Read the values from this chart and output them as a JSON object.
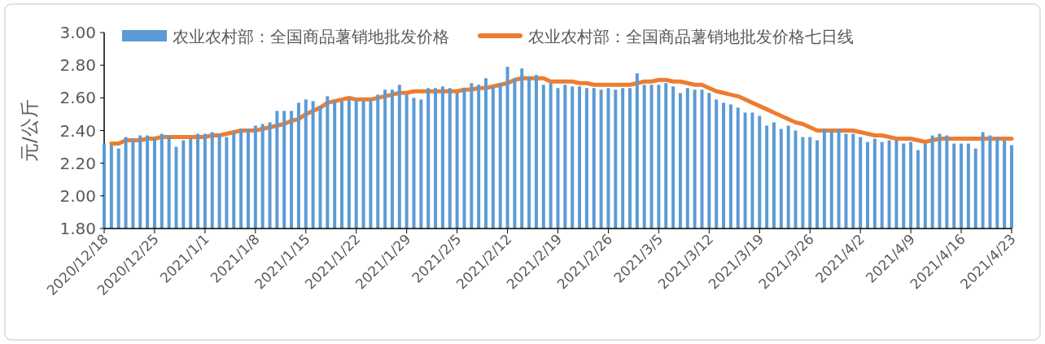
{
  "chart_data": {
    "type": "bar",
    "ylabel": "元/公斤",
    "x": [
      "2020-12-18",
      "2020-12-19",
      "2020-12-20",
      "2020-12-21",
      "2020-12-22",
      "2020-12-23",
      "2020-12-24",
      "2020-12-25",
      "2020-12-26",
      "2020-12-27",
      "2020-12-28",
      "2020-12-29",
      "2020-12-30",
      "2020-12-31",
      "2021-01-01",
      "2021-01-02",
      "2021-01-03",
      "2021-01-04",
      "2021-01-05",
      "2021-01-06",
      "2021-01-07",
      "2021-01-08",
      "2021-01-09",
      "2021-01-10",
      "2021-01-11",
      "2021-01-12",
      "2021-01-13",
      "2021-01-14",
      "2021-01-15",
      "2021-01-16",
      "2021-01-17",
      "2021-01-18",
      "2021-01-19",
      "2021-01-20",
      "2021-01-21",
      "2021-01-22",
      "2021-01-23",
      "2021-01-24",
      "2021-01-25",
      "2021-01-26",
      "2021-01-27",
      "2021-01-28",
      "2021-01-29",
      "2021-01-30",
      "2021-01-31",
      "2021-02-01",
      "2021-02-02",
      "2021-02-03",
      "2021-02-04",
      "2021-02-05",
      "2021-02-06",
      "2021-02-07",
      "2021-02-08",
      "2021-02-09",
      "2021-02-10",
      "2021-02-11",
      "2021-02-12",
      "2021-02-13",
      "2021-02-14",
      "2021-02-15",
      "2021-02-16",
      "2021-02-17",
      "2021-02-18",
      "2021-02-19",
      "2021-02-20",
      "2021-02-21",
      "2021-02-22",
      "2021-02-23",
      "2021-02-24",
      "2021-02-25",
      "2021-02-26",
      "2021-02-27",
      "2021-02-28",
      "2021-03-01",
      "2021-03-02",
      "2021-03-03",
      "2021-03-04",
      "2021-03-05",
      "2021-03-06",
      "2021-03-07",
      "2021-03-08",
      "2021-03-09",
      "2021-03-10",
      "2021-03-11",
      "2021-03-12",
      "2021-03-13",
      "2021-03-14",
      "2021-03-15",
      "2021-03-16",
      "2021-03-17",
      "2021-03-18",
      "2021-03-19",
      "2021-03-20",
      "2021-03-21",
      "2021-03-22",
      "2021-03-23",
      "2021-03-24",
      "2021-03-25",
      "2021-03-26",
      "2021-03-27",
      "2021-03-28",
      "2021-03-29",
      "2021-03-30",
      "2021-03-31",
      "2021-04-01",
      "2021-04-02",
      "2021-04-03",
      "2021-04-04",
      "2021-04-05",
      "2021-04-06",
      "2021-04-07",
      "2021-04-08",
      "2021-04-09",
      "2021-04-10",
      "2021-04-11",
      "2021-04-12",
      "2021-04-13",
      "2021-04-14",
      "2021-04-15",
      "2021-04-16",
      "2021-04-17",
      "2021-04-18",
      "2021-04-19",
      "2021-04-20",
      "2021-04-21",
      "2021-04-22",
      "2021-04-23"
    ],
    "series": [
      {
        "name": "农业农村部：全国商品薯销地批发价格",
        "color": "#5b9bd5",
        "values": [
          2.32,
          2.31,
          2.29,
          2.36,
          2.35,
          2.37,
          2.37,
          2.35,
          2.38,
          2.37,
          2.3,
          2.34,
          2.35,
          2.38,
          2.38,
          2.39,
          2.38,
          2.36,
          2.39,
          2.41,
          2.41,
          2.43,
          2.44,
          2.45,
          2.52,
          2.52,
          2.52,
          2.57,
          2.59,
          2.58,
          2.55,
          2.61,
          2.58,
          2.58,
          2.59,
          2.59,
          2.58,
          2.59,
          2.62,
          2.65,
          2.65,
          2.68,
          2.62,
          2.6,
          2.59,
          2.66,
          2.66,
          2.67,
          2.66,
          2.63,
          2.66,
          2.69,
          2.68,
          2.72,
          2.67,
          2.69,
          2.79,
          2.72,
          2.78,
          2.73,
          2.74,
          2.68,
          2.69,
          2.66,
          2.68,
          2.67,
          2.67,
          2.66,
          2.66,
          2.65,
          2.66,
          2.65,
          2.66,
          2.66,
          2.75,
          2.68,
          2.68,
          2.68,
          2.69,
          2.67,
          2.63,
          2.66,
          2.65,
          2.65,
          2.63,
          2.59,
          2.57,
          2.56,
          2.54,
          2.51,
          2.51,
          2.49,
          2.43,
          2.45,
          2.41,
          2.43,
          2.4,
          2.36,
          2.36,
          2.34,
          2.41,
          2.4,
          2.41,
          2.38,
          2.38,
          2.36,
          2.33,
          2.35,
          2.33,
          2.34,
          2.34,
          2.32,
          2.33,
          2.28,
          2.32,
          2.37,
          2.38,
          2.37,
          2.32,
          2.32,
          2.32,
          2.29,
          2.39,
          2.37,
          2.36,
          2.34,
          2.31
        ]
      },
      {
        "name": "农业农村部：全国商品薯销地批发价格七日线",
        "type": "line",
        "color": "#ed7d31",
        "values": [
          null,
          2.32,
          2.32,
          2.34,
          2.34,
          2.34,
          2.35,
          2.35,
          2.36,
          2.36,
          2.36,
          2.36,
          2.36,
          2.36,
          2.36,
          2.37,
          2.37,
          2.38,
          2.39,
          2.4,
          2.4,
          2.4,
          2.41,
          2.42,
          2.43,
          2.44,
          2.46,
          2.47,
          2.5,
          2.52,
          2.54,
          2.57,
          2.58,
          2.59,
          2.6,
          2.59,
          2.59,
          2.59,
          2.6,
          2.61,
          2.62,
          2.63,
          2.63,
          2.64,
          2.64,
          2.64,
          2.64,
          2.64,
          2.64,
          2.64,
          2.65,
          2.65,
          2.66,
          2.66,
          2.67,
          2.68,
          2.69,
          2.71,
          2.72,
          2.72,
          2.72,
          2.72,
          2.7,
          2.7,
          2.7,
          2.7,
          2.69,
          2.69,
          2.68,
          2.68,
          2.68,
          2.68,
          2.68,
          2.68,
          2.69,
          2.7,
          2.7,
          2.71,
          2.71,
          2.7,
          2.7,
          2.69,
          2.68,
          2.68,
          2.66,
          2.64,
          2.63,
          2.62,
          2.61,
          2.59,
          2.57,
          2.55,
          2.53,
          2.51,
          2.49,
          2.47,
          2.45,
          2.44,
          2.42,
          2.4,
          2.4,
          2.4,
          2.4,
          2.4,
          2.4,
          2.39,
          2.38,
          2.37,
          2.37,
          2.36,
          2.35,
          2.35,
          2.35,
          2.34,
          2.33,
          2.34,
          2.35,
          2.35,
          2.35,
          2.35,
          2.35,
          2.35,
          2.35,
          2.35,
          2.35,
          2.35,
          2.35
        ]
      }
    ],
    "xlim": [
      "2020-12-18",
      "2021-04-23"
    ],
    "xticks": [
      {
        "value": "2020-12-18",
        "label": "2020/12/18"
      },
      {
        "value": "2020-12-25",
        "label": "2020/12/25"
      },
      {
        "value": "2021-01-01",
        "label": "2021/1/1"
      },
      {
        "value": "2021-01-08",
        "label": "2021/1/8"
      },
      {
        "value": "2021-01-15",
        "label": "2021/1/15"
      },
      {
        "value": "2021-01-22",
        "label": "2021/1/22"
      },
      {
        "value": "2021-01-29",
        "label": "2021/1/29"
      },
      {
        "value": "2021-02-05",
        "label": "2021/2/5"
      },
      {
        "value": "2021-02-12",
        "label": "2021/2/12"
      },
      {
        "value": "2021-02-19",
        "label": "2021/2/19"
      },
      {
        "value": "2021-02-26",
        "label": "2021/2/26"
      },
      {
        "value": "2021-03-05",
        "label": "2021/3/5"
      },
      {
        "value": "2021-03-12",
        "label": "2021/3/12"
      },
      {
        "value": "2021-03-19",
        "label": "2021/3/19"
      },
      {
        "value": "2021-03-26",
        "label": "2021/3/26"
      },
      {
        "value": "2021-04-02",
        "label": "2021/4/2"
      },
      {
        "value": "2021-04-09",
        "label": "2021/4/9"
      },
      {
        "value": "2021-04-16",
        "label": "2021/4/16"
      },
      {
        "value": "2021-04-23",
        "label": "2021/4/23"
      }
    ],
    "ylim": [
      1.8,
      3.0
    ],
    "yticks": [
      {
        "value": 1.8,
        "label": "1.80"
      },
      {
        "value": 2.0,
        "label": "2.00"
      },
      {
        "value": 2.2,
        "label": "2.20"
      },
      {
        "value": 2.4,
        "label": "2.40"
      },
      {
        "value": 2.6,
        "label": "2.60"
      },
      {
        "value": 2.8,
        "label": "2.80"
      },
      {
        "value": 3.0,
        "label": "3.00"
      }
    ],
    "legend": "top",
    "grid": false
  }
}
